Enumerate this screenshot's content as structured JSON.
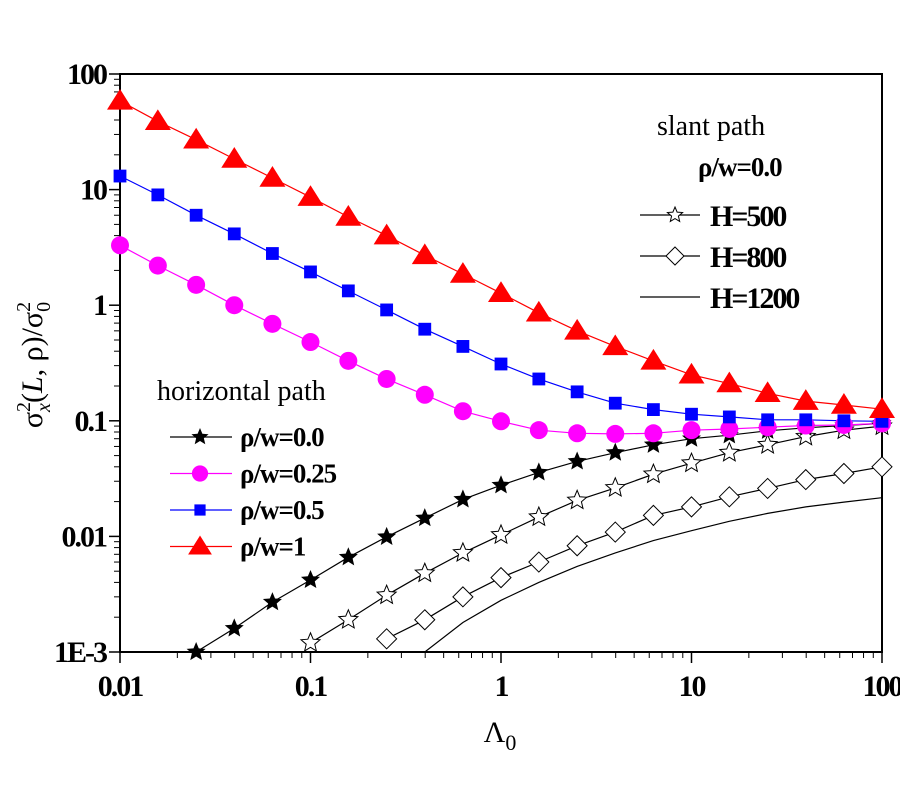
{
  "chart_data": {
    "type": "line",
    "title": "",
    "xlabel": "Λ0",
    "ylabel": "σx²(L, ρ)/σ0²",
    "xscale": "log",
    "yscale": "log",
    "xlim": [
      0.01,
      100
    ],
    "ylim": [
      0.001,
      100
    ],
    "grid": false,
    "x_ticks": [
      "0.01",
      "0.1",
      "1",
      "10",
      "100"
    ],
    "y_ticks": [
      "1E-3",
      "0.01",
      "0.1",
      "1",
      "10",
      "100"
    ],
    "x": [
      0.01,
      0.0158,
      0.0251,
      0.0398,
      0.0631,
      0.1,
      0.158,
      0.251,
      0.398,
      0.631,
      1,
      1.58,
      2.51,
      3.98,
      6.31,
      10,
      15.8,
      25.1,
      39.8,
      63.1,
      100
    ],
    "legends": [
      {
        "group": "horizontal",
        "title": "horizontal path",
        "placement": "lower-left",
        "entries": [
          "ρ/w=0.0",
          "ρ/w=0.25",
          "ρ/w=0.5",
          "ρ/w=1"
        ]
      },
      {
        "group": "slant",
        "title": "slant path",
        "subtitle": "ρ/w=0.0",
        "placement": "upper-right",
        "entries": [
          "H=500",
          "H=800",
          "H=1200"
        ]
      }
    ],
    "series": [
      {
        "name": "ρ/w=0.0",
        "group": "horizontal",
        "marker": "filled-star",
        "color": "#000000",
        "values": [
          null,
          null,
          0.001,
          0.0016,
          0.0027,
          0.0042,
          0.0066,
          0.0099,
          0.0144,
          0.0209,
          0.0277,
          0.0358,
          0.0445,
          0.053,
          0.062,
          0.07,
          0.075,
          0.082,
          0.087,
          0.091,
          0.095
        ]
      },
      {
        "name": "ρ/w=0.25",
        "group": "horizontal",
        "marker": "filled-circle",
        "color": "#ff00ff",
        "values": [
          3.3,
          2.2,
          1.5,
          1.0,
          0.69,
          0.48,
          0.33,
          0.23,
          0.168,
          0.121,
          0.099,
          0.083,
          0.078,
          0.077,
          0.078,
          0.083,
          0.085,
          0.088,
          0.091,
          0.092,
          0.095
        ]
      },
      {
        "name": "ρ/w=0.5",
        "group": "horizontal",
        "marker": "filled-square",
        "color": "#0000ff",
        "values": [
          13.1,
          9.0,
          6.0,
          4.14,
          2.8,
          1.94,
          1.33,
          0.91,
          0.62,
          0.44,
          0.31,
          0.23,
          0.178,
          0.142,
          0.125,
          0.114,
          0.108,
          0.102,
          0.102,
          0.1,
          0.099
        ]
      },
      {
        "name": "ρ/w=1",
        "group": "horizontal",
        "marker": "filled-triangle",
        "color": "#ff0000",
        "values": [
          58.5,
          39,
          27,
          18.4,
          12.6,
          8.6,
          5.8,
          4.0,
          2.7,
          1.86,
          1.27,
          0.86,
          0.6,
          0.44,
          0.33,
          0.25,
          0.21,
          0.173,
          0.148,
          0.137,
          0.126
        ]
      },
      {
        "name": "H=500",
        "group": "slant",
        "marker": "open-star",
        "color": "#000000",
        "values": [
          null,
          null,
          null,
          null,
          null,
          0.0012,
          0.0019,
          0.0031,
          0.0048,
          0.0072,
          0.0103,
          0.0147,
          0.0205,
          0.0263,
          0.0345,
          0.043,
          0.053,
          0.062,
          0.073,
          0.083,
          0.09
        ]
      },
      {
        "name": "H=800",
        "group": "slant",
        "marker": "open-diamond",
        "color": "#000000",
        "values": [
          null,
          null,
          null,
          null,
          null,
          null,
          null,
          0.0013,
          0.0019,
          0.003,
          0.0044,
          0.006,
          0.0083,
          0.0109,
          0.0152,
          0.018,
          0.022,
          0.026,
          0.031,
          0.035,
          0.04
        ]
      },
      {
        "name": "H=1200",
        "group": "slant",
        "marker": "none",
        "color": "#000000",
        "values": [
          null,
          null,
          null,
          null,
          null,
          null,
          null,
          null,
          0.001,
          0.0018,
          0.0028,
          0.004,
          0.0055,
          0.0072,
          0.0092,
          0.0112,
          0.0135,
          0.0158,
          0.018,
          0.0198,
          0.0216
        ]
      }
    ]
  }
}
